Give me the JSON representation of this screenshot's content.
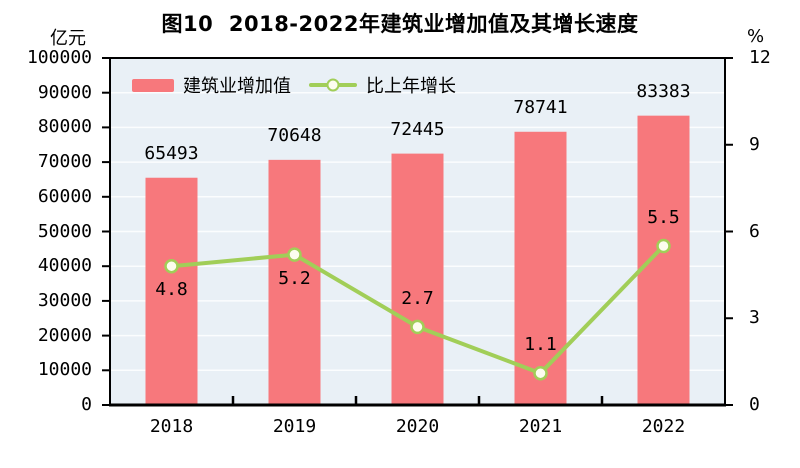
{
  "title": "图10  2018-2022年建筑业增加值及其增长速度",
  "left_axis_unit": "亿元",
  "right_axis_unit": "%",
  "chart_data": {
    "type": "bar+line",
    "categories": [
      "2018",
      "2019",
      "2020",
      "2021",
      "2022"
    ],
    "series": [
      {
        "name": "建筑业增加值",
        "type": "bar",
        "axis": "left",
        "color": "#F7787C",
        "values": [
          65493,
          70648,
          72445,
          78741,
          83383
        ]
      },
      {
        "name": "比上年增长",
        "type": "line",
        "axis": "right",
        "color": "#A1CE58",
        "marker_fill": "#FDFDEF",
        "values": [
          4.8,
          5.2,
          2.7,
          1.1,
          5.5
        ],
        "label_position": [
          "below",
          "below",
          "above",
          "above",
          "above"
        ]
      }
    ],
    "left_axis": {
      "label": "亿元",
      "min": 0,
      "max": 100000,
      "step": 10000,
      "ticks": [
        "0",
        "10000",
        "20000",
        "30000",
        "40000",
        "50000",
        "60000",
        "70000",
        "80000",
        "90000",
        "100000"
      ]
    },
    "right_axis": {
      "label": "%",
      "min": 0,
      "max": 12,
      "step": 3,
      "ticks": [
        "0",
        "3",
        "6",
        "9",
        "12"
      ]
    },
    "grid": true,
    "legend_position": "top-left-inside",
    "plot_bg": "#E9F0F6",
    "grid_color": "#FBFDFE",
    "axis_color": "#000000"
  }
}
